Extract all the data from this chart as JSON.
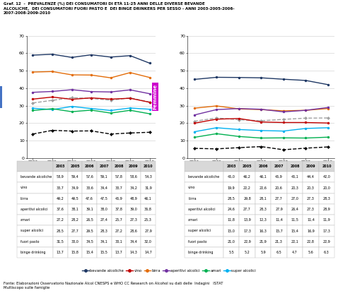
{
  "title": "Graf. 12  -  PREVALENZE (%) DEI CONSUMATORI DI ETÀ 11-25 ANNI DELLE DIVERSE BEVANDE\nALCOLICHE,  DEI CONSUMATORI FUORI PASTO E  DEI BINGE DRINKERS PER SESSO - ANNI 2003-2005-2006-\n2007-2008-2009-2010",
  "years": [
    2003,
    2005,
    2006,
    2007,
    2008,
    2009,
    2010
  ],
  "maschi": {
    "bevande_alcoliche": [
      58.9,
      59.4,
      57.6,
      59.1,
      57.8,
      58.6,
      54.3
    ],
    "vino": [
      33.7,
      34.9,
      33.6,
      34.4,
      33.7,
      34.2,
      31.9
    ],
    "birra": [
      49.2,
      49.5,
      47.6,
      47.5,
      45.9,
      48.9,
      46.1
    ],
    "aperitivi_alcolici": [
      37.6,
      38.1,
      39.1,
      38.0,
      37.8,
      39.0,
      36.8
    ],
    "amari": [
      27.2,
      28.2,
      26.5,
      27.4,
      25.7,
      27.3,
      25.3
    ],
    "super_alcolici": [
      28.5,
      27.7,
      29.5,
      28.3,
      27.2,
      28.6,
      27.9
    ],
    "fuori_pasto": [
      31.5,
      33.0,
      34.5,
      34.1,
      33.1,
      34.4,
      32.0
    ],
    "binge_drinking": [
      13.7,
      15.8,
      15.4,
      15.5,
      13.7,
      14.3,
      14.7
    ]
  },
  "femmine": {
    "bevande_alcoliche": [
      45.0,
      46.2,
      46.1,
      45.9,
      45.1,
      44.4,
      42.0
    ],
    "vino": [
      19.9,
      22.2,
      22.6,
      20.6,
      20.3,
      20.3,
      20.0
    ],
    "birra": [
      28.5,
      29.8,
      28.1,
      27.7,
      27.0,
      27.3,
      28.3
    ],
    "aperitivi_alcolici": [
      24.6,
      27.7,
      28.3,
      27.9,
      26.4,
      27.3,
      28.9
    ],
    "amari": [
      11.8,
      13.9,
      12.3,
      11.4,
      11.5,
      11.4,
      11.9
    ],
    "super_alcolici": [
      15.0,
      17.3,
      16.3,
      15.7,
      15.4,
      16.9,
      17.3
    ],
    "fuori_pasto": [
      21.0,
      22.9,
      21.9,
      21.3,
      22.1,
      22.8,
      22.9
    ],
    "binge_drinking": [
      5.5,
      5.2,
      5.9,
      6.5,
      4.7,
      5.6,
      6.3
    ]
  },
  "colors": {
    "bevande_alcoliche": "#1F3864",
    "vino": "#C00000",
    "birra": "#E36C09",
    "aperitivi_alcolici": "#7030A0",
    "amari": "#00B050",
    "super_alcolici": "#00B0F0",
    "fuori_pasto": "#A0A0A0",
    "binge_drinking": "#000000"
  },
  "maschi_label_color": "#4472C4",
  "femmine_label_color": "#CC00CC",
  "ylim": [
    0,
    70
  ],
  "yticks": [
    0,
    10,
    20,
    30,
    40,
    50,
    60,
    70
  ],
  "table_rows_m": [
    [
      "bevande alcoliche",
      "58,9",
      "59,4",
      "57,6",
      "59,1",
      "57,8",
      "58,6",
      "54,3"
    ],
    [
      "vino",
      "33,7",
      "34,9",
      "33,6",
      "34,4",
      "33,7",
      "34,2",
      "31,9"
    ],
    [
      "birra",
      "49,2",
      "49,5",
      "47,6",
      "47,5",
      "45,9",
      "48,9",
      "46,1"
    ],
    [
      "aperitivi alcolici",
      "37,6",
      "38,1",
      "39,1",
      "38,0",
      "37,8",
      "39,0",
      "36,8"
    ],
    [
      "amari",
      "27,2",
      "28,2",
      "26,5",
      "27,4",
      "25,7",
      "27,3",
      "25,3"
    ],
    [
      "super alcolici",
      "28,5",
      "27,7",
      "29,5",
      "28,3",
      "27,2",
      "28,6",
      "27,9"
    ],
    [
      "fuori pasto",
      "31,5",
      "33,0",
      "34,5",
      "34,1",
      "33,1",
      "34,4",
      "32,0"
    ],
    [
      "binge drinking",
      "13,7",
      "15,8",
      "15,4",
      "15,5",
      "13,7",
      "14,3",
      "14,7"
    ]
  ],
  "table_rows_f": [
    [
      "bevande alcoliche",
      "45,0",
      "46,2",
      "46,1",
      "45,9",
      "45,1",
      "44,4",
      "42,0"
    ],
    [
      "vino",
      "19,9",
      "22,2",
      "22,6",
      "20,6",
      "20,3",
      "20,3",
      "20,0"
    ],
    [
      "birra",
      "28,5",
      "29,8",
      "28,1",
      "27,7",
      "27,0",
      "27,3",
      "28,3"
    ],
    [
      "aperitivi alcolici",
      "24,6",
      "27,7",
      "28,3",
      "27,9",
      "26,4",
      "27,3",
      "28,9"
    ],
    [
      "amari",
      "11,8",
      "13,9",
      "12,3",
      "11,4",
      "11,5",
      "11,4",
      "11,9"
    ],
    [
      "super alcolici",
      "15,0",
      "17,3",
      "16,3",
      "15,7",
      "15,4",
      "16,9",
      "17,3"
    ],
    [
      "fuori pasto",
      "21,0",
      "22,9",
      "21,9",
      "21,3",
      "22,1",
      "22,8",
      "22,9"
    ],
    [
      "binge drinking",
      "5,5",
      "5,2",
      "5,9",
      "6,5",
      "4,7",
      "5,6",
      "6,3"
    ]
  ],
  "legend_items": [
    {
      "label": "bevande alcoliche",
      "color": "#1F3864"
    },
    {
      "label": "vino",
      "color": "#C00000"
    },
    {
      "label": "birra",
      "color": "#E36C09"
    },
    {
      "label": "aperitivi alcolici",
      "color": "#7030A0"
    },
    {
      "label": "amari",
      "color": "#00B050"
    },
    {
      "label": "super alcolici",
      "color": "#00B0F0"
    }
  ],
  "footer": "Fonte: Elaborazioni Osservatorio Nazionale Alcol CNESPS e WHO CC Research on Alcohol su dati delle  Indagini   ISTAT\nMultiscopo sulle famiglie"
}
